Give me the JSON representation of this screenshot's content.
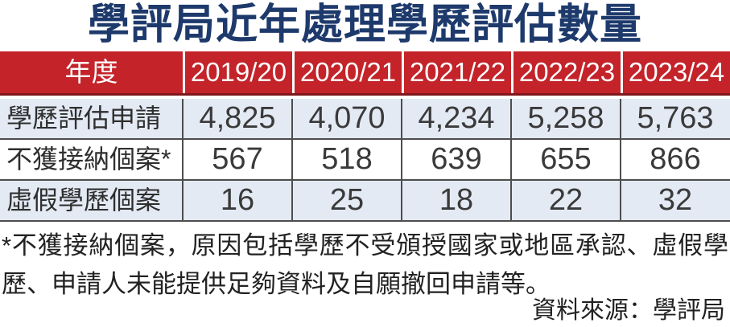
{
  "title": "學評局近年處理學歷評估數量",
  "table": {
    "header": [
      "年度",
      "2019/20",
      "2020/21",
      "2021/22",
      "2022/23",
      "2023/24"
    ],
    "rows": [
      {
        "label": "學歷評估申請",
        "values": [
          "4,825",
          "4,070",
          "4,234",
          "5,258",
          "5,763"
        ]
      },
      {
        "label": "不獲接納個案*",
        "values": [
          "567",
          "518",
          "639",
          "655",
          "866"
        ]
      },
      {
        "label": "虛假學歷個案",
        "values": [
          "16",
          "25",
          "18",
          "22",
          "32"
        ]
      }
    ]
  },
  "footnote": "*不獲接納個案，原因包括學歷不受頒授國家或地區承認、虛假學歷、申請人未能提供足夠資料及自願撤回申請等。",
  "source": "資料來源：學評局",
  "colors": {
    "title_navy": "#1e3a6c",
    "header_red": "#c32329",
    "header_red_dark_border": "#7d171c",
    "row_alt_blue": "#e4eaf4",
    "grid_line": "#4d4d4d",
    "body_text": "#2e2e2e"
  },
  "chart_data": {
    "type": "table",
    "title": "學評局近年處理學歷評估數量",
    "categories": [
      "2019/20",
      "2020/21",
      "2021/22",
      "2022/23",
      "2023/24"
    ],
    "series": [
      {
        "name": "學歷評估申請",
        "values": [
          4825,
          4070,
          4234,
          5258,
          5763
        ]
      },
      {
        "name": "不獲接納個案*",
        "values": [
          567,
          518,
          639,
          655,
          866
        ]
      },
      {
        "name": "虛假學歷個案",
        "values": [
          16,
          25,
          18,
          22,
          32
        ]
      }
    ],
    "row_header_label": "年度",
    "footnote": "*不獲接納個案，原因包括學歷不受頒授國家或地區承認、虛假學歷、申請人未能提供足夠資料及自願撤回申請等。",
    "source": "資料來源：學評局",
    "layout": {
      "header_style": "red-banner-white-text",
      "row_striping": "blue-white-blue"
    }
  }
}
